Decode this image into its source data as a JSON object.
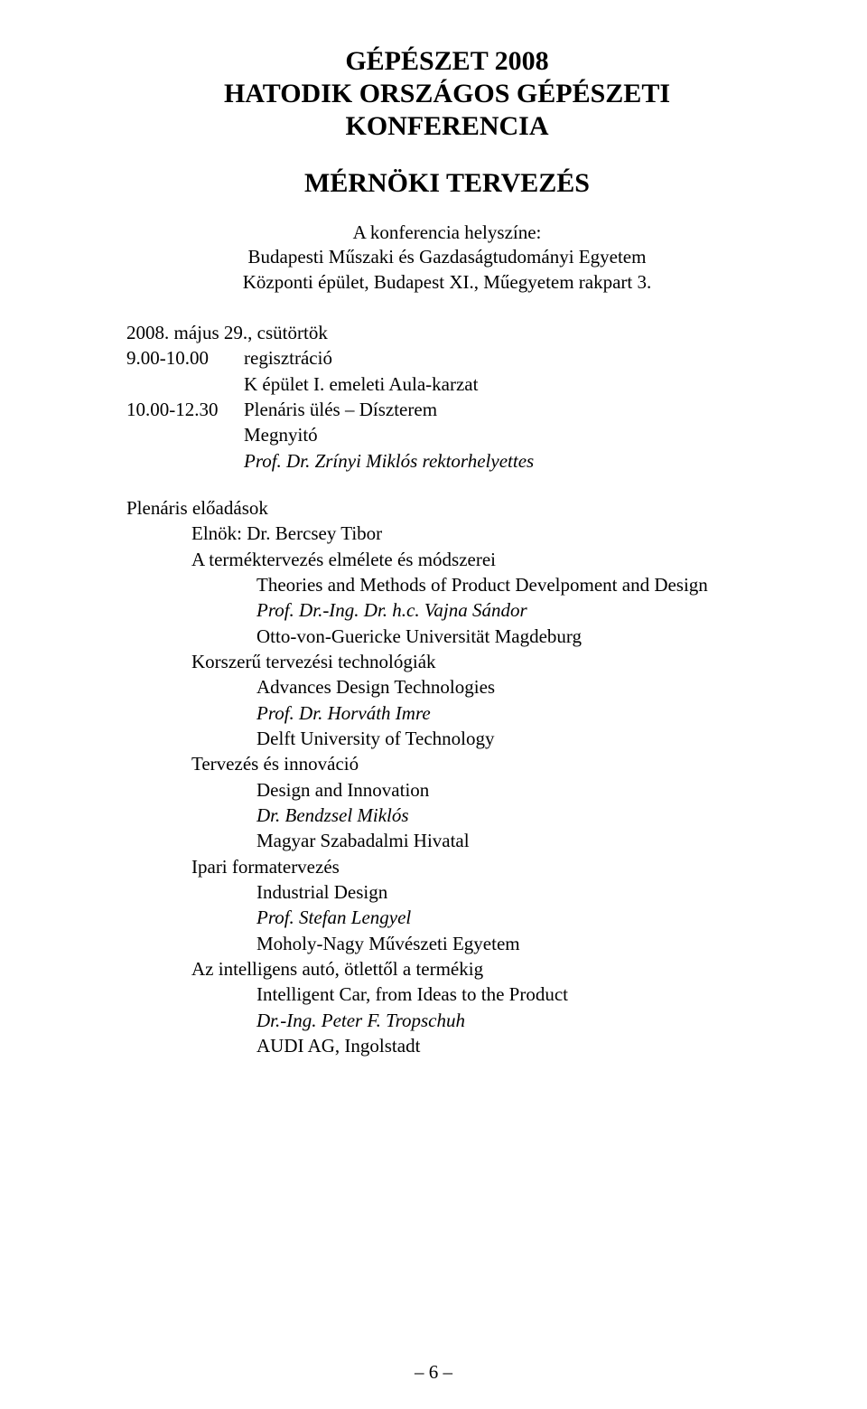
{
  "title_line1": "GÉPÉSZET 2008",
  "title_line2": "HATODIK ORSZÁGOS GÉPÉSZETI",
  "title_line3": "KONFERENCIA",
  "subtitle": "MÉRNÖKI TERVEZÉS",
  "venue_label": "A konferencia helyszíne:",
  "venue_line1": "Budapesti Műszaki és Gazdaságtudományi Egyetem",
  "venue_line2": "Központi épület, Budapest XI., Műegyetem rakpart 3.",
  "date_line": "2008. május 29., csütörtök",
  "sched1_time": "9.00-10.00",
  "sched1_text": "regisztráció",
  "sched1_loc": "K épület I. emeleti Aula-karzat",
  "sched2_time": "10.00-12.30",
  "sched2_text": "Plenáris ülés – Díszterem",
  "sched2_sub1": "Megnyitó",
  "sched2_sub2": "Prof. Dr. Zrínyi Miklós rektorhelyettes",
  "plenary_heading": "Plenáris előadások",
  "chair_label": "Elnök: Dr. Bercsey Tibor",
  "talks": [
    {
      "hu": "A terméktervezés elmélete és módszerei",
      "en": "Theories and Methods of Product Develpoment and Design",
      "speaker": "Prof. Dr.-Ing. Dr. h.c. Vajna Sándor",
      "affiliation": "Otto-von-Guericke Universität Magdeburg"
    },
    {
      "hu": "Korszerű tervezési technológiák",
      "en": "Advances Design Technologies",
      "speaker": "Prof. Dr. Horváth Imre",
      "affiliation": "Delft University of Technology"
    },
    {
      "hu": "Tervezés és innováció",
      "en": "Design and Innovation",
      "speaker": "Dr. Bendzsel Miklós",
      "affiliation": "Magyar Szabadalmi Hivatal"
    },
    {
      "hu": "Ipari formatervezés",
      "en": "Industrial Design",
      "speaker": "Prof. Stefan Lengyel",
      "affiliation": "Moholy-Nagy Művészeti Egyetem"
    },
    {
      "hu": "Az intelligens autó, ötlettől a termékig",
      "en": "Intelligent Car, from Ideas to the Product",
      "speaker": "Dr.-Ing. Peter F. Tropschuh",
      "affiliation": "AUDI AG, Ingolstadt"
    }
  ],
  "page_number": "– 6 –"
}
